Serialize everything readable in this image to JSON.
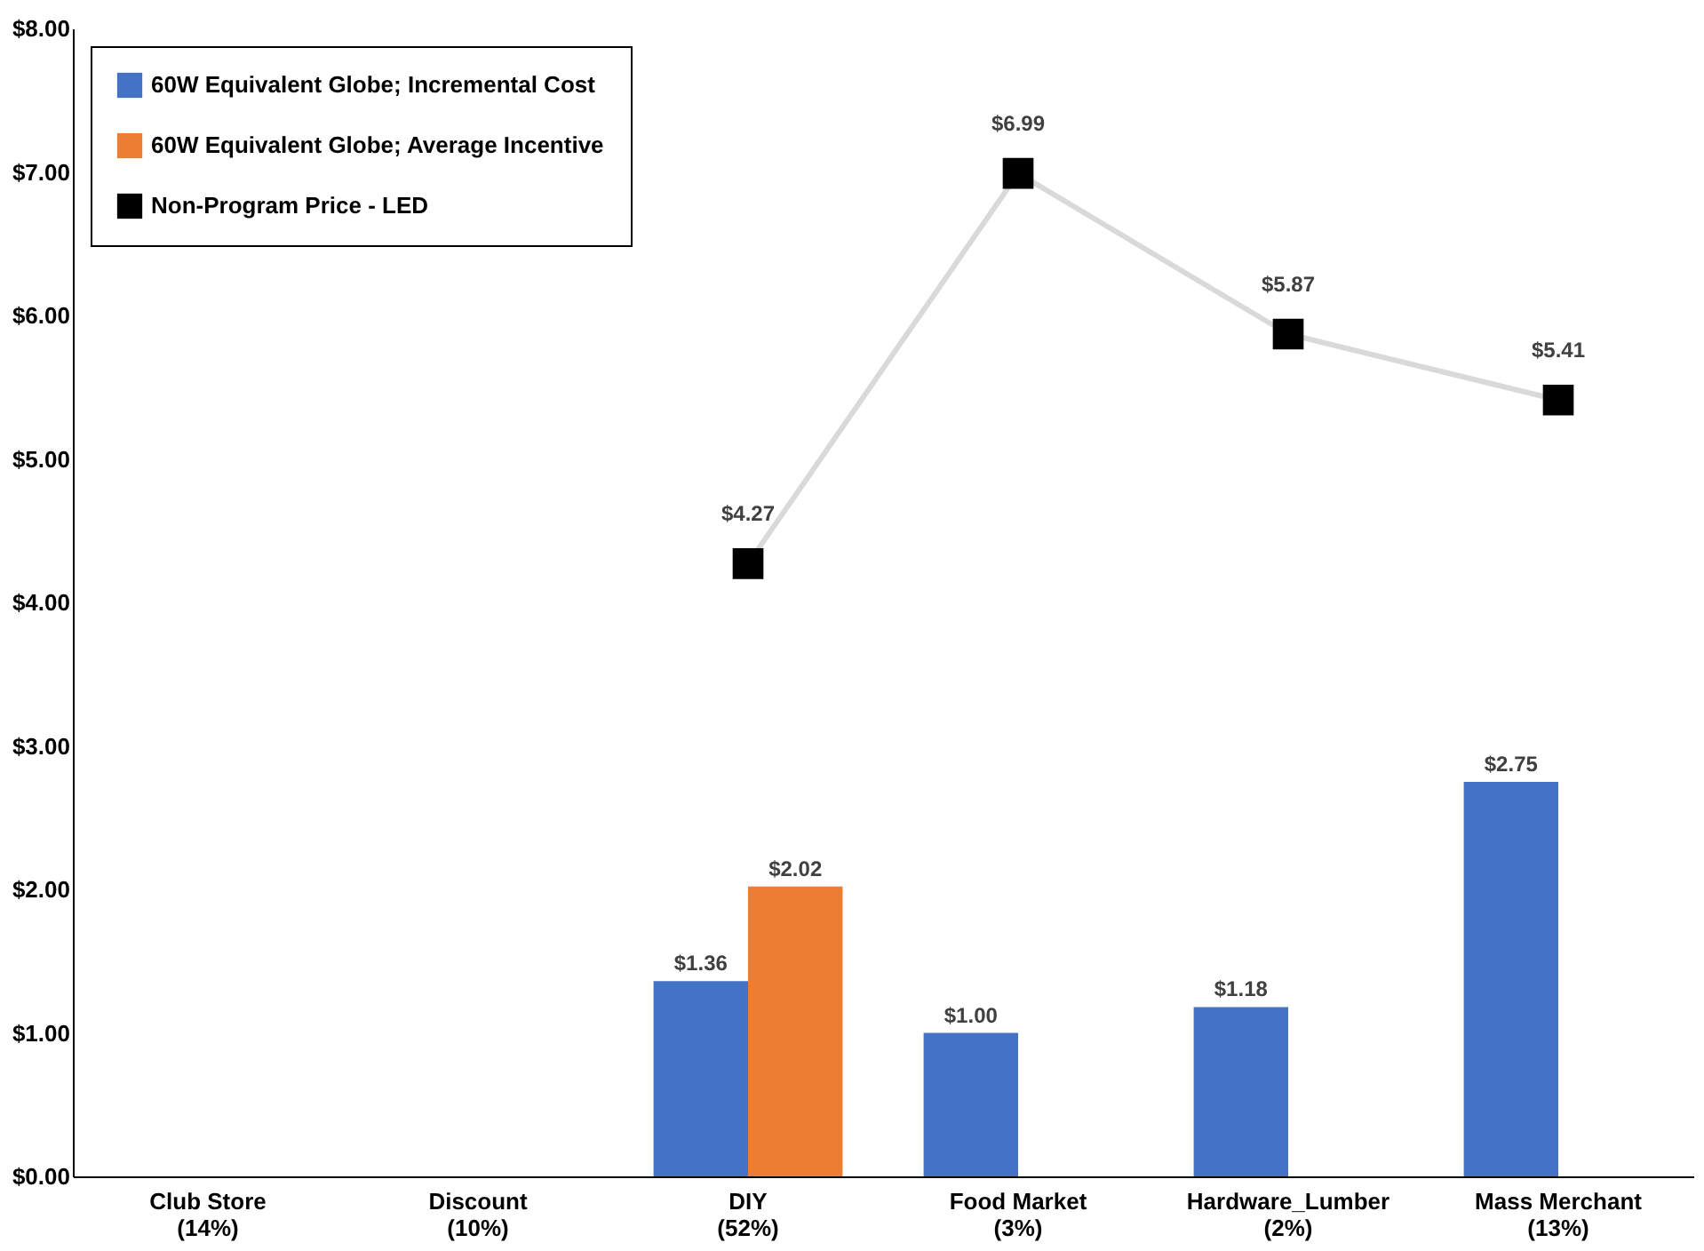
{
  "chart_data": {
    "type": "bar",
    "categories": [
      "Club Store\n(14%)",
      "Discount\n(10%)",
      "DIY\n(52%)",
      "Food Market\n(3%)",
      "Hardware_Lumber\n(2%)",
      "Mass Merchant\n(13%)"
    ],
    "series": [
      {
        "name": "60W Equivalent Globe; Incremental Cost",
        "color": "#4472c4",
        "values": [
          null,
          null,
          1.36,
          1.0,
          1.18,
          2.75
        ],
        "value_labels": [
          null,
          null,
          "$1.36",
          "$1.00",
          "$1.18",
          "$2.75"
        ]
      },
      {
        "name": "60W Equivalent Globe; Average Incentive",
        "color": "#ed7d31",
        "values": [
          null,
          null,
          2.02,
          null,
          null,
          null
        ],
        "value_labels": [
          null,
          null,
          "$2.02",
          null,
          null,
          null
        ]
      },
      {
        "name": "Non-Program Price - LED",
        "type": "line",
        "color": "#000000",
        "marker": "square",
        "values": [
          null,
          null,
          4.27,
          6.99,
          5.87,
          5.41
        ],
        "value_labels": [
          null,
          null,
          "$4.27",
          "$6.99",
          "$5.87",
          "$5.41"
        ]
      }
    ],
    "ylim": [
      0,
      8
    ],
    "yticks": [
      {
        "value": 0,
        "label": "$0.00"
      },
      {
        "value": 1,
        "label": "$1.00"
      },
      {
        "value": 2,
        "label": "$2.00"
      },
      {
        "value": 3,
        "label": "$3.00"
      },
      {
        "value": 4,
        "label": "$4.00"
      },
      {
        "value": 5,
        "label": "$5.00"
      },
      {
        "value": 6,
        "label": "$6.00"
      },
      {
        "value": 7,
        "label": "$7.00"
      },
      {
        "value": 8,
        "label": "$8.00"
      }
    ],
    "grid": false,
    "legend": "top left"
  }
}
